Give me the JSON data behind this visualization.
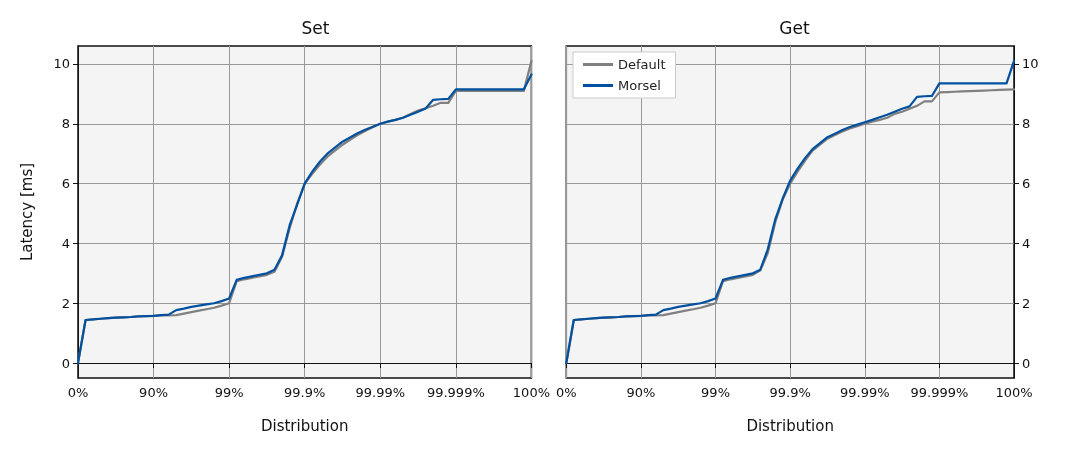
{
  "chart_data": [
    {
      "type": "line",
      "title": "Set",
      "xlabel": "Distribution",
      "ylabel": "Latency [ms]",
      "categories": [
        "0%",
        null,
        null,
        null,
        null,
        null,
        null,
        null,
        null,
        null,
        "90%",
        null,
        null,
        null,
        null,
        null,
        null,
        null,
        null,
        null,
        "99%",
        null,
        null,
        null,
        null,
        null,
        null,
        null,
        null,
        null,
        "99.9%",
        null,
        null,
        null,
        null,
        null,
        null,
        null,
        null,
        null,
        "99.99%",
        null,
        null,
        null,
        null,
        null,
        null,
        null,
        null,
        null,
        "99.999%",
        null,
        null,
        null,
        null,
        null,
        null,
        null,
        null,
        null,
        "100%"
      ],
      "ylim": [
        -0.5,
        10.6
      ],
      "yticks": [
        0,
        2,
        4,
        6,
        8,
        10
      ],
      "grid": true,
      "legend": false,
      "series": [
        {
          "color": "#808080",
          "values": [
            0,
            1.44,
            1.46,
            1.48,
            1.5,
            1.52,
            1.53,
            1.54,
            1.56,
            1.57,
            1.58,
            1.59,
            1.59,
            1.6,
            1.65,
            1.7,
            1.75,
            1.8,
            1.85,
            1.92,
            2.0,
            2.74,
            2.8,
            2.85,
            2.9,
            2.95,
            3.05,
            3.55,
            4.5,
            5.33,
            6.0,
            6.33,
            6.63,
            6.9,
            7.1,
            7.3,
            7.46,
            7.62,
            7.76,
            7.88,
            8.0,
            8.07,
            8.13,
            8.2,
            8.33,
            8.44,
            8.52,
            8.6,
            8.7,
            8.7,
            9.1,
            9.1,
            9.1,
            9.1,
            9.1,
            9.1,
            9.1,
            9.1,
            9.1,
            9.1,
            10.1
          ]
        },
        {
          "color": "#0050a0",
          "values": [
            0,
            1.44,
            1.46,
            1.48,
            1.5,
            1.52,
            1.53,
            1.54,
            1.56,
            1.57,
            1.58,
            1.6,
            1.62,
            1.77,
            1.82,
            1.88,
            1.92,
            1.96,
            2.0,
            2.07,
            2.16,
            2.78,
            2.85,
            2.9,
            2.95,
            3.0,
            3.12,
            3.6,
            4.6,
            5.3,
            6.0,
            6.4,
            6.73,
            7.0,
            7.2,
            7.4,
            7.54,
            7.68,
            7.8,
            7.9,
            8.0,
            8.07,
            8.13,
            8.2,
            8.3,
            8.4,
            8.51,
            8.8,
            8.82,
            8.83,
            9.15,
            9.15,
            9.15,
            9.15,
            9.15,
            9.15,
            9.15,
            9.15,
            9.15,
            9.15,
            9.65
          ]
        }
      ]
    },
    {
      "type": "line",
      "title": "Get",
      "xlabel": "Distribution",
      "categories": [
        "0%",
        null,
        null,
        null,
        null,
        null,
        null,
        null,
        null,
        null,
        "90%",
        null,
        null,
        null,
        null,
        null,
        null,
        null,
        null,
        null,
        "99%",
        null,
        null,
        null,
        null,
        null,
        null,
        null,
        null,
        null,
        "99.9%",
        null,
        null,
        null,
        null,
        null,
        null,
        null,
        null,
        null,
        "99.99%",
        null,
        null,
        null,
        null,
        null,
        null,
        null,
        null,
        null,
        "99.999%",
        null,
        null,
        null,
        null,
        null,
        null,
        null,
        null,
        null,
        "100%"
      ],
      "ylim": [
        -0.5,
        10.6
      ],
      "yticks": [
        0,
        2,
        4,
        6,
        8,
        10
      ],
      "grid": true,
      "legend": "top left",
      "series": [
        {
          "name": "Default",
          "color": "#808080",
          "values": [
            0,
            1.44,
            1.46,
            1.48,
            1.5,
            1.52,
            1.53,
            1.54,
            1.56,
            1.57,
            1.58,
            1.59,
            1.59,
            1.6,
            1.65,
            1.7,
            1.75,
            1.8,
            1.85,
            1.92,
            2.0,
            2.74,
            2.8,
            2.85,
            2.9,
            2.95,
            3.1,
            3.68,
            4.7,
            5.47,
            6.0,
            6.4,
            6.77,
            7.1,
            7.3,
            7.5,
            7.62,
            7.74,
            7.84,
            7.92,
            8.0,
            8.07,
            8.13,
            8.2,
            8.33,
            8.4,
            8.5,
            8.6,
            8.75,
            8.75,
            9.05,
            9.06,
            9.07,
            9.08,
            9.09,
            9.1,
            9.11,
            9.12,
            9.13,
            9.14,
            9.15
          ]
        },
        {
          "name": "Morsel",
          "color": "#0050a0",
          "values": [
            0,
            1.44,
            1.46,
            1.48,
            1.5,
            1.52,
            1.53,
            1.54,
            1.56,
            1.57,
            1.58,
            1.6,
            1.62,
            1.77,
            1.82,
            1.88,
            1.92,
            1.96,
            2.0,
            2.07,
            2.16,
            2.78,
            2.85,
            2.9,
            2.95,
            3.0,
            3.12,
            3.8,
            4.8,
            5.5,
            6.1,
            6.5,
            6.85,
            7.15,
            7.35,
            7.55,
            7.67,
            7.79,
            7.89,
            7.97,
            8.05,
            8.13,
            8.22,
            8.3,
            8.4,
            8.5,
            8.58,
            8.9,
            8.92,
            8.93,
            9.35,
            9.35,
            9.35,
            9.35,
            9.35,
            9.35,
            9.35,
            9.35,
            9.35,
            9.35,
            10.1
          ]
        }
      ]
    }
  ]
}
